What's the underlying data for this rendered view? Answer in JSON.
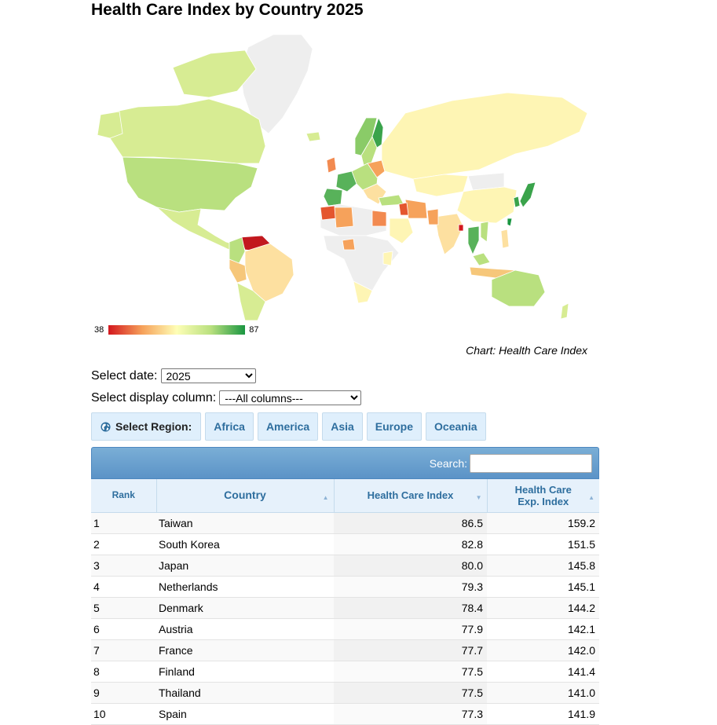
{
  "page": {
    "title": "Health Care Index by Country 2025"
  },
  "map": {
    "legend_min": "38",
    "legend_max": "87",
    "caption": "Chart: Health Care Index",
    "colors": {
      "low": "#d3171e",
      "mid_low": "#f6a25b",
      "mid": "#fefeb6",
      "mid_high": "#b9e07f",
      "high": "#1a9641",
      "no_data": "#f0f0f0"
    }
  },
  "controls": {
    "date_label": "Select date:",
    "date_value": "2025",
    "column_label": "Select display column:",
    "column_value": "---All columns---"
  },
  "regions": {
    "label": "Select Region:",
    "items": [
      "Africa",
      "America",
      "Asia",
      "Europe",
      "Oceania"
    ]
  },
  "search": {
    "label": "Search:",
    "value": ""
  },
  "table": {
    "headers": {
      "rank": "Rank",
      "country": "Country",
      "hci": "Health Care Index",
      "hce_line1": "Health Care",
      "hce_line2": "Exp. Index"
    },
    "rows": [
      {
        "rank": "1",
        "country": "Taiwan",
        "hci": "86.5",
        "hce": "159.2"
      },
      {
        "rank": "2",
        "country": "South Korea",
        "hci": "82.8",
        "hce": "151.5"
      },
      {
        "rank": "3",
        "country": "Japan",
        "hci": "80.0",
        "hce": "145.8"
      },
      {
        "rank": "4",
        "country": "Netherlands",
        "hci": "79.3",
        "hce": "145.1"
      },
      {
        "rank": "5",
        "country": "Denmark",
        "hci": "78.4",
        "hce": "144.2"
      },
      {
        "rank": "6",
        "country": "Austria",
        "hci": "77.9",
        "hce": "142.1"
      },
      {
        "rank": "7",
        "country": "France",
        "hci": "77.7",
        "hce": "142.0"
      },
      {
        "rank": "8",
        "country": "Finland",
        "hci": "77.5",
        "hce": "141.4"
      },
      {
        "rank": "9",
        "country": "Thailand",
        "hci": "77.5",
        "hce": "141.0"
      },
      {
        "rank": "10",
        "country": "Spain",
        "hci": "77.3",
        "hce": "141.9"
      }
    ]
  }
}
